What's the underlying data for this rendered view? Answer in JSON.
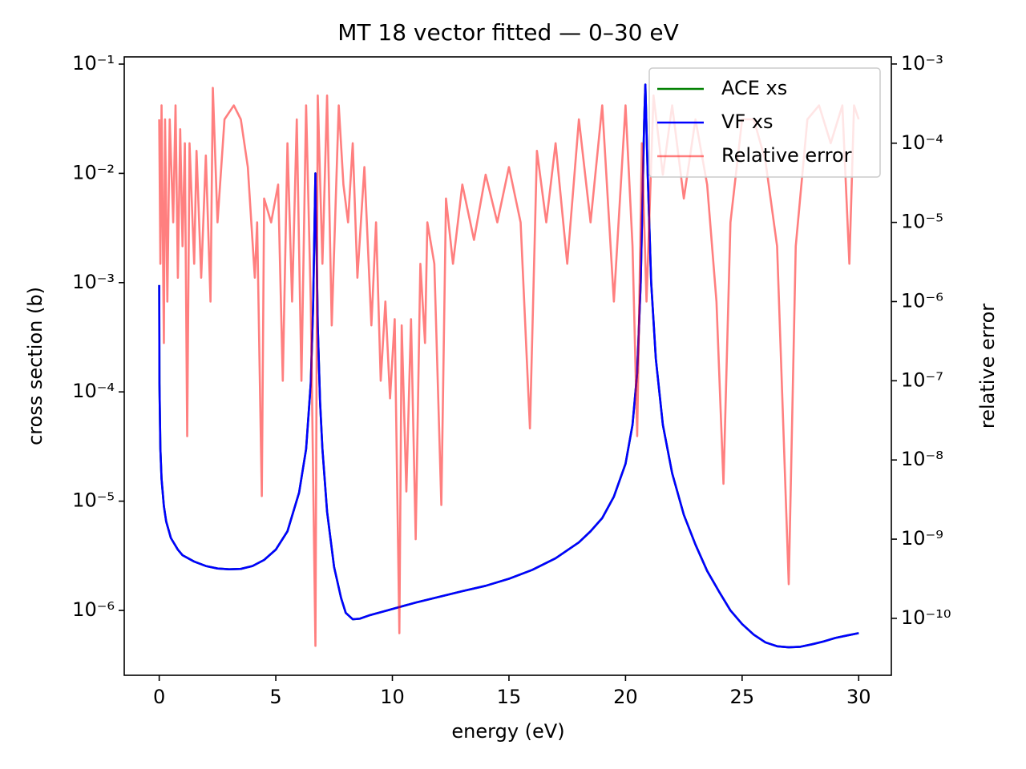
{
  "chart_data": {
    "type": "line",
    "title": "MT 18 vector fitted — 0–30 eV",
    "x_label": "energy (eV)",
    "y_label": "cross section (b)",
    "y2_label": "relative error",
    "y_color": "#0000ff",
    "y2_color": "#ff0000",
    "log_y": true,
    "log_y2": true,
    "xlim": [
      -1.5,
      31.4
    ],
    "ylim": [
      2.55e-07,
      0.1164
    ],
    "y2lim": [
      1.91e-11,
      0.00123
    ],
    "xticks": [
      0,
      5,
      10,
      15,
      20,
      25,
      30
    ],
    "yticks": [
      {
        "value": 1e-06,
        "label": "10⁻⁶"
      },
      {
        "value": 1e-05,
        "label": "10⁻⁵"
      },
      {
        "value": 0.0001,
        "label": "10⁻⁴"
      },
      {
        "value": 0.001,
        "label": "10⁻³"
      },
      {
        "value": 0.01,
        "label": "10⁻²"
      },
      {
        "value": 0.1,
        "label": "10⁻¹"
      }
    ],
    "y2ticks": [
      {
        "value": 1e-10,
        "label": "10⁻¹⁰"
      },
      {
        "value": 1e-09,
        "label": "10⁻⁹"
      },
      {
        "value": 1e-08,
        "label": "10⁻⁸"
      },
      {
        "value": 1e-07,
        "label": "10⁻⁷"
      },
      {
        "value": 1e-06,
        "label": "10⁻⁶"
      },
      {
        "value": 1e-05,
        "label": "10⁻⁵"
      },
      {
        "value": 0.0001,
        "label": "10⁻⁴"
      },
      {
        "value": 0.001,
        "label": "10⁻³"
      }
    ],
    "legend": "upper right",
    "series": [
      {
        "name": "ACE xs",
        "color": "#008000",
        "opacity": 1,
        "x": [
          0,
          0.01,
          0.05,
          0.1,
          0.2,
          0.3,
          0.5,
          0.8,
          1,
          1.5,
          2,
          2.5,
          3,
          3.5,
          4,
          4.5,
          5,
          5.5,
          6,
          6.3,
          6.5,
          6.6,
          6.7,
          6.75,
          6.8,
          6.9,
          7,
          7.2,
          7.5,
          7.8,
          8,
          8.3,
          8.6,
          9,
          10,
          11,
          12,
          13,
          14,
          15,
          16,
          17,
          18,
          18.5,
          19,
          19.5,
          20,
          20.3,
          20.5,
          20.65,
          20.8,
          20.85,
          20.95,
          21.1,
          21.3,
          21.6,
          22,
          22.5,
          23,
          23.5,
          24,
          24.5,
          25,
          25.5,
          26,
          26.5,
          27,
          27.5,
          28,
          28.5,
          29,
          29.5,
          30
        ],
        "values": [
          0.00095,
          0.00012,
          3e-05,
          1.6e-05,
          9e-06,
          6.5e-06,
          4.6e-06,
          3.6e-06,
          3.2e-06,
          2.8e-06,
          2.55e-06,
          2.42e-06,
          2.38e-06,
          2.4e-06,
          2.55e-06,
          2.9e-06,
          3.6e-06,
          5.3e-06,
          1.2e-05,
          3e-05,
          0.00012,
          0.0006,
          0.01,
          0.002,
          0.0004,
          8e-05,
          3e-05,
          8e-06,
          2.5e-06,
          1.3e-06,
          9.5e-07,
          8.3e-07,
          8.4e-07,
          9e-07,
          1.03e-06,
          1.18e-06,
          1.33e-06,
          1.5e-06,
          1.68e-06,
          1.95e-06,
          2.35e-06,
          3e-06,
          4.2e-06,
          5.3e-06,
          7e-06,
          1.1e-05,
          2.2e-05,
          5e-05,
          0.00015,
          0.001,
          0.03,
          0.065,
          0.01,
          0.001,
          0.0002,
          5e-05,
          1.8e-05,
          7.5e-06,
          4e-06,
          2.3e-06,
          1.5e-06,
          1e-06,
          7.5e-07,
          6e-07,
          5.1e-07,
          4.7e-07,
          4.6e-07,
          4.65e-07,
          4.9e-07,
          5.2e-07,
          5.6e-07,
          5.9e-07,
          6.2e-07
        ]
      },
      {
        "name": "VF xs",
        "color": "#0000ff",
        "opacity": 1,
        "x": [
          0,
          0.01,
          0.05,
          0.1,
          0.2,
          0.3,
          0.5,
          0.8,
          1,
          1.5,
          2,
          2.5,
          3,
          3.5,
          4,
          4.5,
          5,
          5.5,
          6,
          6.3,
          6.5,
          6.6,
          6.7,
          6.75,
          6.8,
          6.9,
          7,
          7.2,
          7.5,
          7.8,
          8,
          8.3,
          8.6,
          9,
          10,
          11,
          12,
          13,
          14,
          15,
          16,
          17,
          18,
          18.5,
          19,
          19.5,
          20,
          20.3,
          20.5,
          20.65,
          20.8,
          20.85,
          20.95,
          21.1,
          21.3,
          21.6,
          22,
          22.5,
          23,
          23.5,
          24,
          24.5,
          25,
          25.5,
          26,
          26.5,
          27,
          27.5,
          28,
          28.5,
          29,
          29.5,
          30
        ],
        "values": [
          0.00095,
          0.00012,
          3e-05,
          1.6e-05,
          9e-06,
          6.5e-06,
          4.6e-06,
          3.6e-06,
          3.2e-06,
          2.8e-06,
          2.55e-06,
          2.42e-06,
          2.38e-06,
          2.4e-06,
          2.55e-06,
          2.9e-06,
          3.6e-06,
          5.3e-06,
          1.2e-05,
          3e-05,
          0.00012,
          0.0006,
          0.01,
          0.002,
          0.0004,
          8e-05,
          3e-05,
          8e-06,
          2.5e-06,
          1.3e-06,
          9.5e-07,
          8.3e-07,
          8.4e-07,
          9e-07,
          1.03e-06,
          1.18e-06,
          1.33e-06,
          1.5e-06,
          1.68e-06,
          1.95e-06,
          2.35e-06,
          3e-06,
          4.2e-06,
          5.3e-06,
          7e-06,
          1.1e-05,
          2.2e-05,
          5e-05,
          0.00015,
          0.001,
          0.03,
          0.065,
          0.01,
          0.001,
          0.0002,
          5e-05,
          1.8e-05,
          7.5e-06,
          4e-06,
          2.3e-06,
          1.5e-06,
          1e-06,
          7.5e-07,
          6e-07,
          5.1e-07,
          4.7e-07,
          4.6e-07,
          4.65e-07,
          4.9e-07,
          5.2e-07,
          5.6e-07,
          5.9e-07,
          6.2e-07
        ]
      },
      {
        "name": "Relative error",
        "color": "#ff0000",
        "opacity": 0.5,
        "axis": "y2",
        "x": [
          0,
          0.05,
          0.1,
          0.15,
          0.2,
          0.25,
          0.35,
          0.45,
          0.6,
          0.7,
          0.8,
          0.9,
          1.0,
          1.1,
          1.2,
          1.3,
          1.5,
          1.6,
          1.8,
          2.0,
          2.2,
          2.3,
          2.5,
          2.8,
          3.2,
          3.5,
          3.8,
          4.1,
          4.2,
          4.4,
          4.5,
          4.8,
          5.1,
          5.3,
          5.5,
          5.7,
          5.9,
          6.1,
          6.3,
          6.5,
          6.7,
          6.8,
          7.0,
          7.2,
          7.4,
          7.7,
          7.9,
          8.1,
          8.3,
          8.5,
          8.8,
          9.1,
          9.3,
          9.5,
          9.7,
          9.9,
          10.1,
          10.3,
          10.4,
          10.6,
          10.8,
          11.0,
          11.2,
          11.4,
          11.5,
          11.8,
          12.1,
          12.3,
          12.6,
          13.0,
          13.5,
          14.0,
          14.5,
          15.0,
          15.5,
          15.9,
          16.2,
          16.6,
          17.0,
          17.5,
          18.0,
          18.5,
          19.0,
          19.5,
          20.0,
          20.3,
          20.5,
          20.7,
          20.9,
          21.2,
          21.6,
          22.0,
          22.5,
          23.0,
          23.5,
          23.9,
          24.2,
          24.5,
          25.0,
          25.5,
          26.0,
          26.5,
          27.0,
          27.3,
          27.8,
          28.3,
          28.8,
          29.3,
          29.6,
          29.8,
          30.0
        ],
        "values": [
          0.0002,
          3e-06,
          0.0003,
          1e-05,
          3e-07,
          0.0002,
          1e-06,
          0.0002,
          1e-05,
          0.0003,
          2e-06,
          0.00015,
          5e-06,
          0.0001,
          2e-08,
          0.0001,
          3e-06,
          8e-05,
          2e-06,
          7e-05,
          1e-06,
          0.0005,
          1e-05,
          0.0002,
          0.0003,
          0.0002,
          5e-05,
          2e-06,
          1e-05,
          3.5e-09,
          2e-05,
          1e-05,
          3e-05,
          1e-07,
          0.0001,
          1e-06,
          0.0002,
          1e-07,
          0.0003,
          1e-06,
          4.5e-11,
          0.0004,
          3e-06,
          0.0004,
          5e-07,
          0.0003,
          3e-05,
          1e-05,
          0.0001,
          2e-06,
          5e-05,
          5e-07,
          1e-05,
          1e-07,
          1e-06,
          6e-08,
          6e-07,
          6.5e-11,
          5e-07,
          4e-09,
          6e-07,
          1e-09,
          3e-06,
          3e-07,
          1e-05,
          3e-06,
          2.7e-09,
          2e-05,
          3e-06,
          3e-05,
          6e-06,
          4e-05,
          1e-05,
          5e-05,
          1e-05,
          2.5e-08,
          8e-05,
          1e-05,
          0.0001,
          3e-06,
          0.0002,
          1e-05,
          0.0003,
          1e-06,
          0.0003,
          5e-06,
          2e-08,
          0.0001,
          1e-06,
          0.0004,
          4e-05,
          0.0003,
          2e-05,
          0.0002,
          3e-05,
          1e-06,
          5e-09,
          1e-05,
          0.0002,
          0.0002,
          6e-05,
          5e-06,
          2.7e-10,
          5e-06,
          0.0002,
          0.0003,
          0.0001,
          0.0003,
          3e-06,
          0.0003,
          0.0002
        ]
      }
    ]
  }
}
